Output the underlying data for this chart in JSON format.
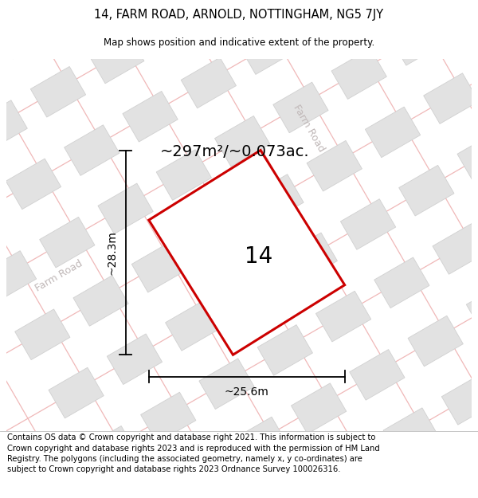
{
  "title_line1": "14, FARM ROAD, ARNOLD, NOTTINGHAM, NG5 7JY",
  "title_line2": "Map shows position and indicative extent of the property.",
  "area_label": "~297m²/~0.073ac.",
  "width_label": "~25.6m",
  "height_label": "~28.3m",
  "property_number": "14",
  "footer_text": "Contains OS data © Crown copyright and database right 2021. This information is subject to Crown copyright and database rights 2023 and is reproduced with the permission of HM Land Registry. The polygons (including the associated geometry, namely x, y co-ordinates) are subject to Crown copyright and database rights 2023 Ordnance Survey 100026316.",
  "bg_color": "#efefef",
  "map_bg": "#ececec",
  "block_fill": "#e2e2e2",
  "block_edge": "#d0d0d0",
  "road_line_color": "#f0b8b8",
  "road_label_color": "#c0b8b8",
  "property_edge": "#cc0000",
  "property_fill": "white",
  "title_fontsize": 10.5,
  "subtitle_fontsize": 8.5,
  "footer_fontsize": 7.2,
  "number_fontsize": 20,
  "area_fontsize": 14
}
